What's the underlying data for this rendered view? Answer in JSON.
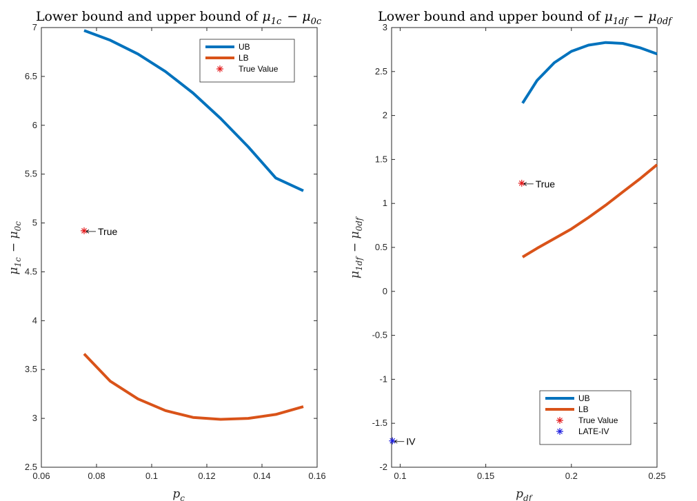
{
  "chart_data": [
    {
      "type": "line",
      "title": "Lower bound and upper bound of μ1c − μ0c",
      "xlabel": "pc",
      "ylabel": "μ1c − μ0c",
      "xlim": [
        0.06,
        0.16
      ],
      "ylim": [
        2.5,
        7
      ],
      "x_ticks": [
        "0.06",
        "0.08",
        "0.1",
        "0.12",
        "0.14",
        "0.16"
      ],
      "y_ticks": [
        "2.5",
        "3",
        "3.5",
        "4",
        "4.5",
        "5",
        "5.5",
        "6",
        "6.5",
        "7"
      ],
      "grid": false,
      "legend_position": "top-right",
      "series": [
        {
          "name": "UB",
          "color": "#0072BD",
          "points": [
            [
              0.0755,
              6.97
            ],
            [
              0.085,
              6.87
            ],
            [
              0.095,
              6.73
            ],
            [
              0.105,
              6.55
            ],
            [
              0.115,
              6.33
            ],
            [
              0.125,
              6.07
            ],
            [
              0.135,
              5.78
            ],
            [
              0.145,
              5.46
            ],
            [
              0.155,
              5.33
            ]
          ]
        },
        {
          "name": "LB",
          "color": "#D95319",
          "points": [
            [
              0.0755,
              3.66
            ],
            [
              0.085,
              3.38
            ],
            [
              0.095,
              3.2
            ],
            [
              0.105,
              3.08
            ],
            [
              0.115,
              3.01
            ],
            [
              0.125,
              2.99
            ],
            [
              0.135,
              3.0
            ],
            [
              0.145,
              3.04
            ],
            [
              0.155,
              3.12
            ]
          ]
        }
      ],
      "markers": [
        {
          "name": "True Value",
          "color": "#E41A1C",
          "symbol": "*",
          "x": 0.0755,
          "y": 4.92,
          "label": "True"
        }
      ]
    },
    {
      "type": "line",
      "title": "Lower bound and upper bound of μ1df − μ0df",
      "xlabel": "pdf",
      "ylabel": "μ1df − μ0df",
      "xlim": [
        0.095,
        0.25
      ],
      "ylim": [
        -2,
        3
      ],
      "x_ticks": [
        "0.1",
        "0.15",
        "0.2",
        "0.25"
      ],
      "x_tick_values": [
        0.1,
        0.15,
        0.2,
        0.25
      ],
      "y_ticks": [
        "-2",
        "-1.5",
        "-1",
        "-0.5",
        "0",
        "0.5",
        "1",
        "1.5",
        "2",
        "2.5",
        "3"
      ],
      "grid": false,
      "legend_position": "bottom-right",
      "series": [
        {
          "name": "UB",
          "color": "#0072BD",
          "points": [
            [
              0.1715,
              2.14
            ],
            [
              0.18,
              2.4
            ],
            [
              0.19,
              2.6
            ],
            [
              0.2,
              2.73
            ],
            [
              0.21,
              2.8
            ],
            [
              0.22,
              2.83
            ],
            [
              0.23,
              2.82
            ],
            [
              0.24,
              2.77
            ],
            [
              0.25,
              2.7
            ]
          ]
        },
        {
          "name": "LB",
          "color": "#D95319",
          "points": [
            [
              0.1715,
              0.39
            ],
            [
              0.18,
              0.49
            ],
            [
              0.19,
              0.6
            ],
            [
              0.2,
              0.71
            ],
            [
              0.21,
              0.84
            ],
            [
              0.22,
              0.98
            ],
            [
              0.23,
              1.13
            ],
            [
              0.24,
              1.28
            ],
            [
              0.25,
              1.44
            ]
          ]
        }
      ],
      "markers": [
        {
          "name": "True Value",
          "color": "#E41A1C",
          "symbol": "*",
          "x": 0.171,
          "y": 1.23,
          "label": "True"
        },
        {
          "name": "LATE-IV",
          "color": "#1F1FE0",
          "symbol": "*",
          "x": 0.0955,
          "y": -1.7,
          "label": "IV"
        }
      ]
    }
  ]
}
